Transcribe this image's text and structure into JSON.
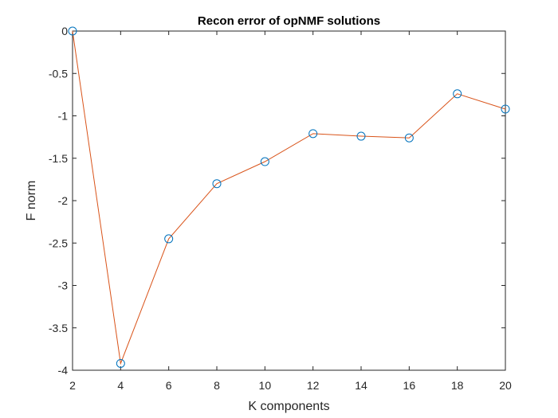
{
  "chart_data": {
    "type": "line",
    "title": "Recon error of opNMF solutions",
    "xlabel": "K components",
    "ylabel": "F norm",
    "x": [
      2,
      4,
      6,
      8,
      10,
      12,
      14,
      16,
      18,
      20
    ],
    "series": [
      {
        "values": [
          0,
          -3.92,
          -2.45,
          -1.8,
          -1.54,
          -1.21,
          -1.24,
          -1.26,
          -0.74,
          -0.92
        ],
        "line_color": "#D95319",
        "marker": "circle",
        "marker_color": "#0072BD"
      }
    ],
    "xlim": [
      2,
      20
    ],
    "ylim": [
      -4,
      0
    ],
    "xticks": [
      2,
      4,
      6,
      8,
      10,
      12,
      14,
      16,
      18,
      20
    ],
    "yticks": [
      0,
      -0.5,
      -1,
      -1.5,
      -2,
      -2.5,
      -3,
      -3.5,
      -4
    ],
    "xtick_labels": [
      "2",
      "4",
      "6",
      "8",
      "10",
      "12",
      "14",
      "16",
      "18",
      "20"
    ],
    "ytick_labels": [
      "0",
      "-0.5",
      "-1",
      "-1.5",
      "-2",
      "-2.5",
      "-3",
      "-3.5",
      "-4"
    ],
    "grid": false,
    "legend": "none",
    "axis_color": "#262626"
  }
}
